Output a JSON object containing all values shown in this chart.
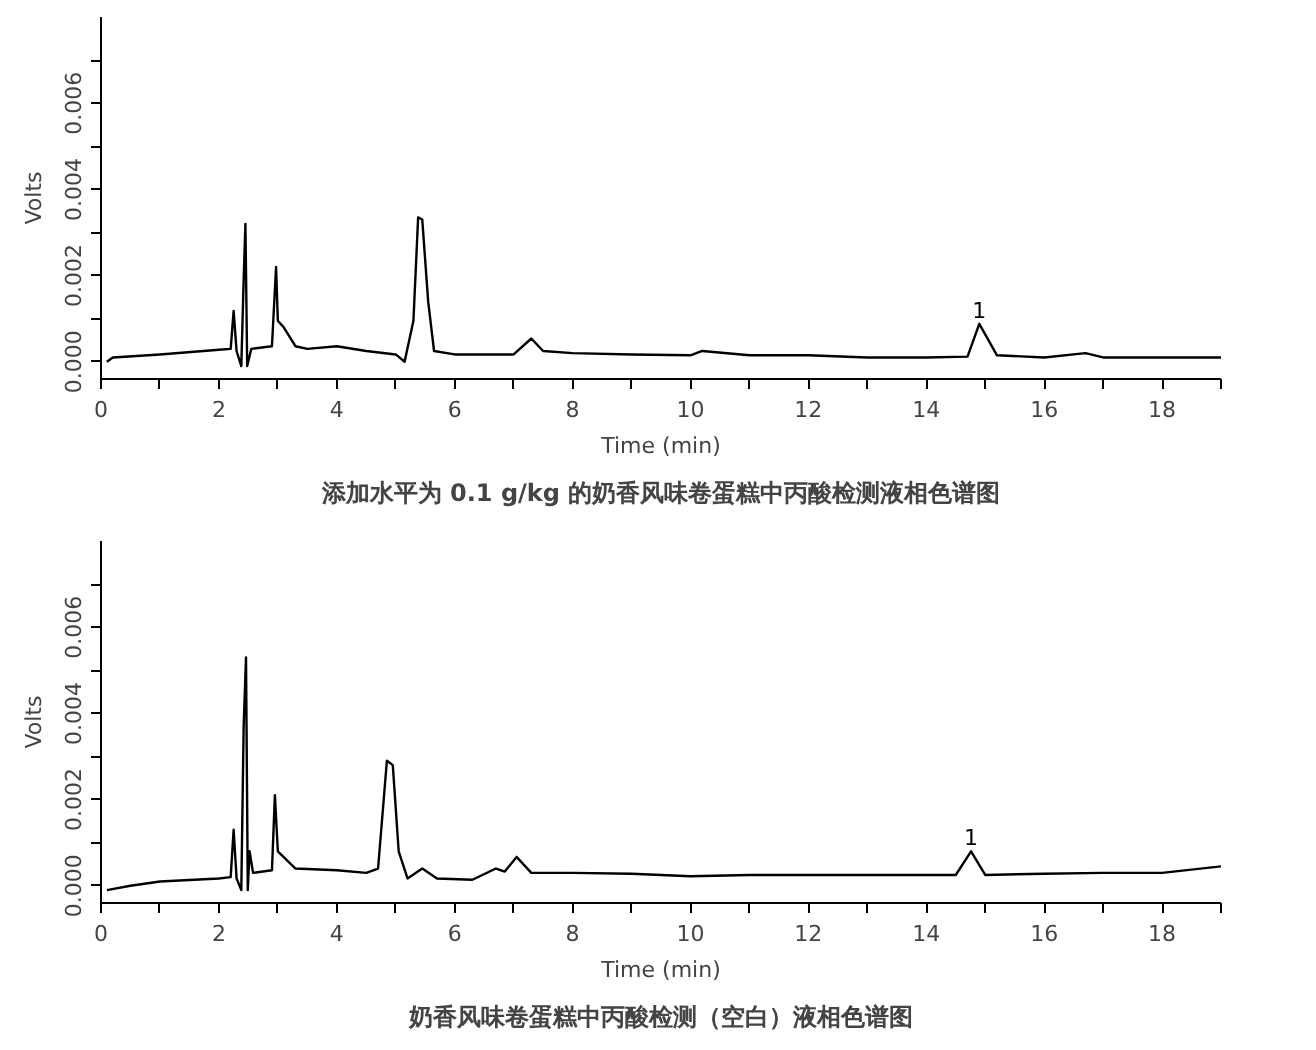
{
  "chart_data": [
    {
      "type": "line",
      "title": "添加水平为 0.1 g/kg 的奶香风味卷蛋糕中丙酸检测液相色谱图",
      "xlabel": "Time (min)",
      "ylabel": "Volts",
      "xlim": [
        0,
        19
      ],
      "ylim": [
        -0.0004,
        0.008
      ],
      "xticks": [
        0,
        {
          "value": 1,
          "label": null
        },
        2,
        {
          "value": 3,
          "label": null
        },
        4,
        {
          "value": 5,
          "label": null
        },
        6,
        {
          "value": 7,
          "label": null
        },
        8,
        {
          "value": 9,
          "label": null
        },
        10,
        {
          "value": 11,
          "label": null
        },
        12,
        {
          "value": 13,
          "label": null
        },
        14,
        {
          "value": 15,
          "label": null
        },
        16,
        {
          "value": 17,
          "label": null
        },
        18,
        {
          "value": 19,
          "label": null
        }
      ],
      "yticks": [
        {
          "value": 0,
          "label": "0.000"
        },
        {
          "value": 0.001,
          "label": null
        },
        {
          "value": 0.002,
          "label": "0.002"
        },
        {
          "value": 0.003,
          "label": null
        },
        {
          "value": 0.004,
          "label": "0.004"
        },
        {
          "value": 0.005,
          "label": null
        },
        {
          "value": 0.006,
          "label": "0.006"
        },
        {
          "value": 0.007,
          "label": null
        }
      ],
      "annotations": [
        {
          "text": "1",
          "x": 14.9,
          "y": 0.00088
        }
      ],
      "series": [
        {
          "color": "#000000",
          "x": [
            0.1,
            0.2,
            1,
            2,
            2.2,
            2.25,
            2.3,
            2.38,
            2.42,
            2.45,
            2.48,
            2.55,
            2.9,
            2.97,
            3.0,
            3.1,
            3.3,
            3.5,
            4,
            4.5,
            5.0,
            5.15,
            5.3,
            5.38,
            5.45,
            5.55,
            5.65,
            6,
            7,
            7.3,
            7.5,
            8,
            9,
            10,
            10.2,
            11,
            12,
            13,
            14,
            14.7,
            14.9,
            15.2,
            16,
            16.7,
            17,
            18,
            19
          ],
          "values": [
            0.0,
            0.0001,
            0.00017,
            0.00028,
            0.0003,
            0.00118,
            0.00025,
            -0.0001,
            0.0019,
            0.0032,
            -0.0001,
            0.0003,
            0.00036,
            0.0022,
            0.00095,
            0.0008,
            0.00036,
            0.0003,
            0.00036,
            0.00025,
            0.00017,
            0.0,
            0.00095,
            0.00335,
            0.0033,
            0.0014,
            0.00025,
            0.00017,
            0.00017,
            0.00054,
            0.00025,
            0.0002,
            0.00017,
            0.00015,
            0.00025,
            0.00015,
            0.00015,
            0.0001,
            0.0001,
            0.00012,
            0.00088,
            0.00015,
            0.0001,
            0.0002,
            0.0001,
            0.0001,
            0.0001
          ]
        }
      ]
    },
    {
      "type": "line",
      "title": "奶香风味卷蛋糕中丙酸检测（空白）液相色谱图",
      "xlabel": "Time (min)",
      "ylabel": "Volts",
      "xlim": [
        0,
        19
      ],
      "ylim": [
        -0.0004,
        0.008
      ],
      "xticks": [
        0,
        {
          "value": 1,
          "label": null
        },
        2,
        {
          "value": 3,
          "label": null
        },
        4,
        {
          "value": 5,
          "label": null
        },
        6,
        {
          "value": 7,
          "label": null
        },
        8,
        {
          "value": 9,
          "label": null
        },
        10,
        {
          "value": 11,
          "label": null
        },
        12,
        {
          "value": 13,
          "label": null
        },
        14,
        {
          "value": 15,
          "label": null
        },
        16,
        {
          "value": 17,
          "label": null
        },
        18,
        {
          "value": 19,
          "label": null
        }
      ],
      "yticks": [
        {
          "value": 0,
          "label": "0.000"
        },
        {
          "value": 0.001,
          "label": null
        },
        {
          "value": 0.002,
          "label": "0.002"
        },
        {
          "value": 0.003,
          "label": null
        },
        {
          "value": 0.004,
          "label": "0.004"
        },
        {
          "value": 0.005,
          "label": null
        },
        {
          "value": 0.006,
          "label": "0.006"
        },
        {
          "value": 0.007,
          "label": null
        }
      ],
      "annotations": [
        {
          "text": "1",
          "x": 14.76,
          "y": 0.0008
        }
      ],
      "series": [
        {
          "color": "#000000",
          "x": [
            0.1,
            0.5,
            1,
            2,
            2.2,
            2.25,
            2.3,
            2.38,
            2.42,
            2.46,
            2.49,
            2.52,
            2.58,
            2.9,
            2.95,
            3.0,
            3.3,
            4,
            4.5,
            4.7,
            4.85,
            4.95,
            5.05,
            5.2,
            5.45,
            5.7,
            6.3,
            6.7,
            6.85,
            7.05,
            7.3,
            8,
            9,
            10,
            11,
            12,
            13,
            14,
            14.5,
            14.76,
            15.0,
            16,
            17,
            18,
            19
          ],
          "values": [
            -0.0001,
            0.0,
            0.0001,
            0.00017,
            0.0002,
            0.0013,
            0.00017,
            -0.0001,
            0.0037,
            0.0053,
            -0.0001,
            0.0008,
            0.0003,
            0.00036,
            0.0021,
            0.0008,
            0.0004,
            0.00036,
            0.0003,
            0.0004,
            0.0029,
            0.0028,
            0.0008,
            0.00017,
            0.0004,
            0.00017,
            0.00014,
            0.0004,
            0.00033,
            0.00067,
            0.0003,
            0.0003,
            0.00028,
            0.00022,
            0.00025,
            0.00025,
            0.00025,
            0.00025,
            0.00025,
            0.0008,
            0.00025,
            0.00028,
            0.0003,
            0.0003,
            0.00045
          ]
        }
      ]
    }
  ]
}
